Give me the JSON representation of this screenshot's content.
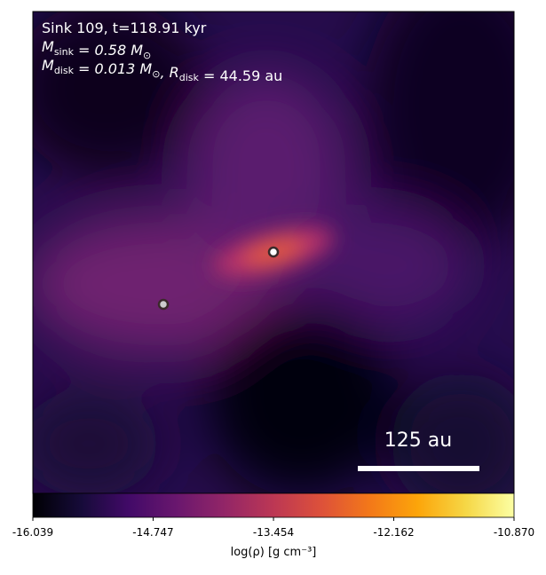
{
  "chart_data": {
    "type": "image",
    "annotations": [
      [
        {
          "text": "Sink 109, t=118.91 kyr"
        }
      ],
      [
        {
          "text": "M",
          "sub": "sink"
        },
        {
          "text": " = 0.58 M",
          "sub": "⊙"
        }
      ],
      [
        {
          "text": "M",
          "sub": "disk"
        },
        {
          "text": " = 0.013 M",
          "sub": "⊙"
        },
        {
          "text": ", R",
          "sub": "disk"
        },
        {
          "text": " = 44.59 au"
        }
      ]
    ],
    "scalebar_label": "125 au",
    "colorbar": {
      "label": "log(ρ) [g cm⁻³]",
      "colormap": "inferno",
      "lim": [
        -16.039,
        -10.87
      ],
      "ticks": [
        -16.039,
        -14.747,
        -13.454,
        -12.162,
        {
          "value": -10.87,
          "label": "-10.870"
        }
      ]
    }
  }
}
